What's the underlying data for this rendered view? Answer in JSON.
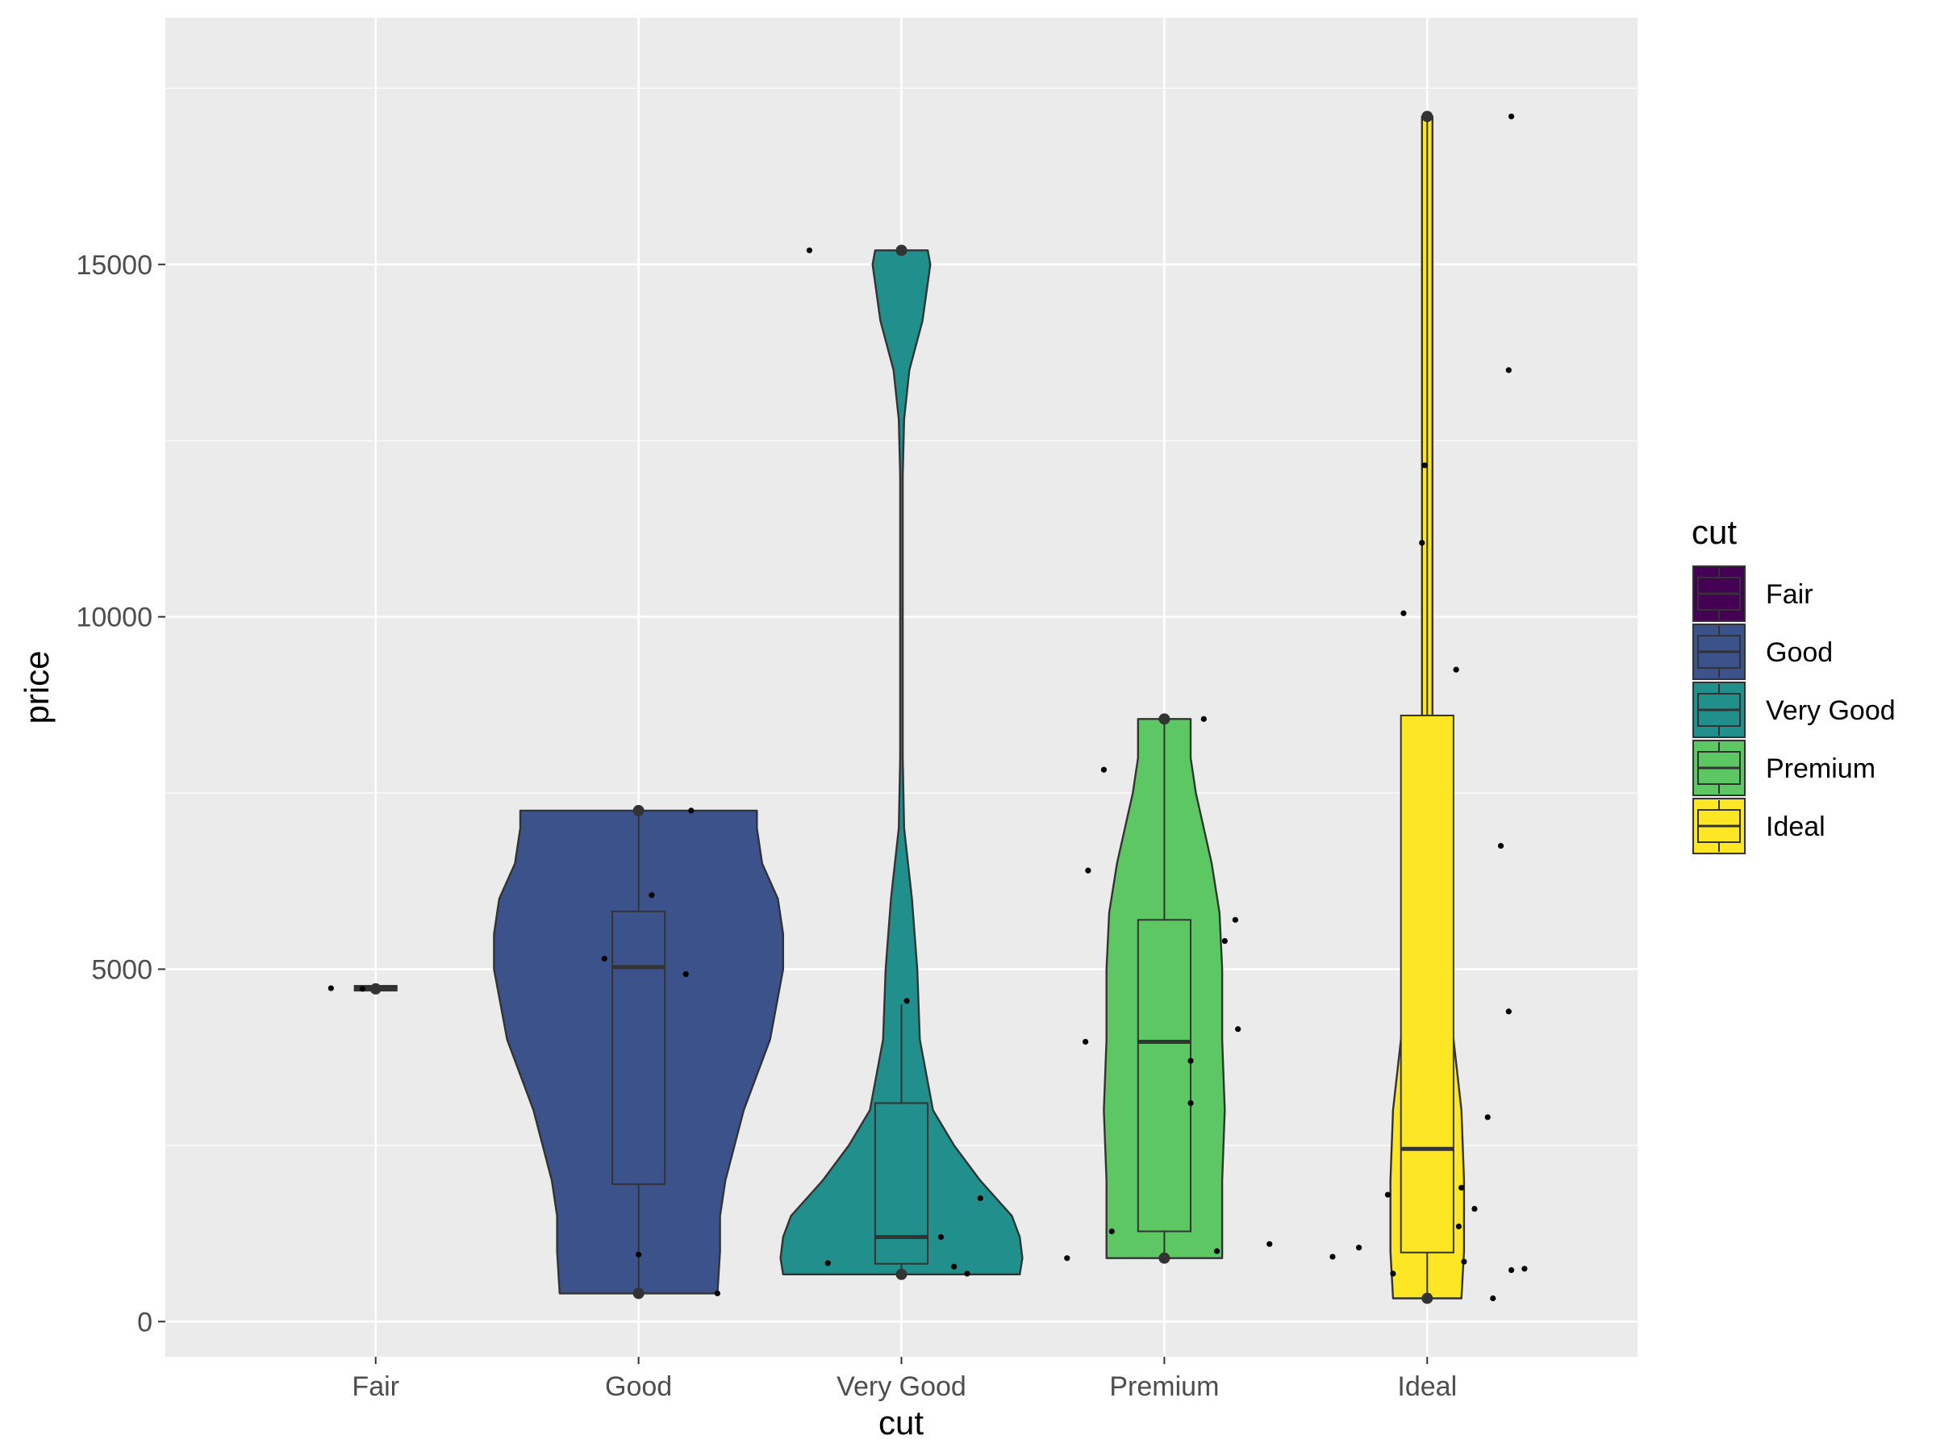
{
  "chart_data": {
    "type": "violin",
    "xlabel": "cut",
    "ylabel": "price",
    "ylim": [
      -500,
      18500
    ],
    "yticks": [
      0,
      5000,
      10000,
      15000
    ],
    "grid": true,
    "legend": {
      "title": "cut",
      "placement": "right",
      "entries": [
        {
          "name": "Fair",
          "color": "#440154"
        },
        {
          "name": "Good",
          "color": "#3B528B"
        },
        {
          "name": "Very Good",
          "color": "#21908C"
        },
        {
          "name": "Premium",
          "color": "#5DC863"
        },
        {
          "name": "Ideal",
          "color": "#FDE725"
        }
      ]
    },
    "categories": [
      "Fair",
      "Good",
      "Very Good",
      "Premium",
      "Ideal"
    ],
    "groups": [
      {
        "name": "Fair",
        "color": "#440154",
        "box": {
          "q1": 4710,
          "median": 4720,
          "q3": 4730,
          "lower": 4710,
          "upper": 4730
        },
        "violin": [
          [
            4700,
            0.2
          ],
          [
            4720,
            0.2
          ],
          [
            4740,
            0.2
          ]
        ],
        "outliers": [
          4720
        ],
        "points": [
          [
            -0.17,
            4730
          ],
          [
            -0.05,
            4720
          ]
        ]
      },
      {
        "name": "Good",
        "color": "#3B528B",
        "box": {
          "q1": 1950,
          "median": 5030,
          "q3": 5820,
          "lower": 400,
          "upper": 7250
        },
        "violin": [
          [
            400,
            0.3
          ],
          [
            1000,
            0.31
          ],
          [
            1500,
            0.31
          ],
          [
            2000,
            0.33
          ],
          [
            3000,
            0.4
          ],
          [
            4000,
            0.5
          ],
          [
            5000,
            0.55
          ],
          [
            5500,
            0.55
          ],
          [
            6000,
            0.53
          ],
          [
            6500,
            0.47
          ],
          [
            7000,
            0.45
          ],
          [
            7250,
            0.45
          ]
        ],
        "outliers": [
          400,
          7250
        ],
        "points": [
          [
            -0.13,
            5150
          ],
          [
            0.0,
            950
          ],
          [
            0.05,
            6050
          ],
          [
            0.18,
            4930
          ],
          [
            0.2,
            7250
          ],
          [
            0.3,
            400
          ]
        ]
      },
      {
        "name": "Very Good",
        "color": "#21908C",
        "box": {
          "q1": 820,
          "median": 1200,
          "q3": 3100,
          "lower": 670,
          "upper": 4500
        },
        "violin": [
          [
            670,
            0.45
          ],
          [
            900,
            0.46
          ],
          [
            1200,
            0.45
          ],
          [
            1500,
            0.42
          ],
          [
            2000,
            0.3
          ],
          [
            2500,
            0.2
          ],
          [
            3000,
            0.12
          ],
          [
            4000,
            0.07
          ],
          [
            5000,
            0.06
          ],
          [
            6000,
            0.04
          ],
          [
            7000,
            0.01
          ],
          [
            8000,
            0.005
          ],
          [
            10000,
            0.005
          ],
          [
            12000,
            0.005
          ],
          [
            12800,
            0.01
          ],
          [
            13500,
            0.03
          ],
          [
            14200,
            0.08
          ],
          [
            15000,
            0.11
          ],
          [
            15200,
            0.1
          ]
        ],
        "outliers": [
          670,
          15200
        ],
        "points": [
          [
            -0.35,
            15200
          ],
          [
            -0.28,
            830
          ],
          [
            0.02,
            4550
          ],
          [
            0.15,
            1200
          ],
          [
            0.2,
            780
          ],
          [
            0.25,
            680
          ],
          [
            0.3,
            1750
          ]
        ]
      },
      {
        "name": "Premium",
        "color": "#5DC863",
        "box": {
          "q1": 1280,
          "median": 3970,
          "q3": 5700,
          "lower": 900,
          "upper": 8550
        },
        "violin": [
          [
            900,
            0.22
          ],
          [
            1200,
            0.22
          ],
          [
            2000,
            0.22
          ],
          [
            3000,
            0.23
          ],
          [
            4000,
            0.22
          ],
          [
            5000,
            0.22
          ],
          [
            5800,
            0.21
          ],
          [
            6500,
            0.18
          ],
          [
            7500,
            0.12
          ],
          [
            8000,
            0.1
          ],
          [
            8550,
            0.1
          ]
        ],
        "outliers": [
          900,
          8550
        ],
        "points": [
          [
            -0.37,
            900
          ],
          [
            -0.3,
            3970
          ],
          [
            -0.29,
            6400
          ],
          [
            -0.23,
            7830
          ],
          [
            -0.2,
            1280
          ],
          [
            0.1,
            3700
          ],
          [
            0.1,
            3100
          ],
          [
            0.15,
            8550
          ],
          [
            0.2,
            1000
          ],
          [
            0.23,
            5400
          ],
          [
            0.27,
            5700
          ],
          [
            0.28,
            4150
          ],
          [
            0.4,
            1100
          ]
        ]
      },
      {
        "name": "Ideal",
        "color": "#FDE725",
        "box": {
          "q1": 980,
          "median": 2450,
          "q3": 8600,
          "lower": 330,
          "upper": 17100
        },
        "violin": [
          [
            330,
            0.13
          ],
          [
            1000,
            0.14
          ],
          [
            2000,
            0.14
          ],
          [
            3000,
            0.13
          ],
          [
            4000,
            0.1
          ],
          [
            5000,
            0.06
          ],
          [
            6000,
            0.03
          ],
          [
            7000,
            0.02
          ],
          [
            10000,
            0.02
          ],
          [
            14000,
            0.02
          ],
          [
            16500,
            0.02
          ],
          [
            17100,
            0.02
          ]
        ],
        "outliers": [
          330,
          17100
        ],
        "points": [
          [
            -0.36,
            920
          ],
          [
            -0.26,
            1050
          ],
          [
            -0.15,
            1800
          ],
          [
            -0.13,
            680
          ],
          [
            -0.09,
            10050
          ],
          [
            -0.02,
            11050
          ],
          [
            -0.01,
            12150
          ],
          [
            0.11,
            9250
          ],
          [
            0.12,
            1350
          ],
          [
            0.13,
            1900
          ],
          [
            0.14,
            850
          ],
          [
            0.18,
            1600
          ],
          [
            0.23,
            2900
          ],
          [
            0.25,
            330
          ],
          [
            0.28,
            6750
          ],
          [
            0.31,
            4400
          ],
          [
            0.31,
            13500
          ],
          [
            0.32,
            17100
          ],
          [
            0.32,
            730
          ],
          [
            0.37,
            750
          ]
        ]
      }
    ]
  }
}
